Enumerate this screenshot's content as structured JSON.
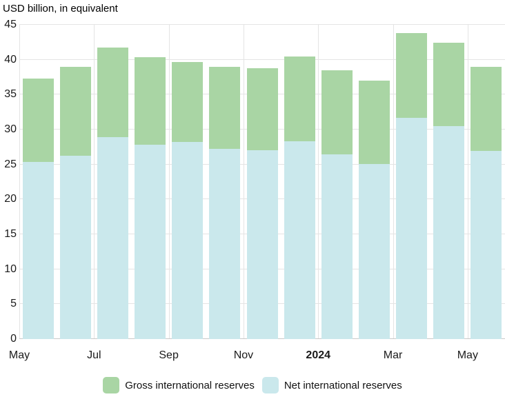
{
  "title": "USD billion, in equivalent",
  "chart_data": {
    "type": "bar",
    "title": "USD billion, in equivalent",
    "xlabel": "",
    "ylabel": "USD billion",
    "ylim": [
      0,
      45
    ],
    "y_ticks": [
      0,
      5,
      10,
      15,
      20,
      25,
      30,
      35,
      40,
      45
    ],
    "n_bars": 13,
    "grid": true,
    "x_ticks": [
      {
        "label": "May",
        "slot": 0,
        "bold": false
      },
      {
        "label": "Jul",
        "slot": 2,
        "bold": false
      },
      {
        "label": "Sep",
        "slot": 4,
        "bold": false
      },
      {
        "label": "Nov",
        "slot": 6,
        "bold": false
      },
      {
        "label": "2024",
        "slot": 8,
        "bold": true
      },
      {
        "label": "Mar",
        "slot": 10,
        "bold": false
      },
      {
        "label": "May",
        "slot": 12,
        "bold": false
      }
    ],
    "series": [
      {
        "name": "Gross international reserves",
        "color": "#a9d5a4",
        "values": [
          37.3,
          39.0,
          41.7,
          40.4,
          39.7,
          39.0,
          38.8,
          40.5,
          38.5,
          37.0,
          43.8,
          42.4,
          39.0
        ]
      },
      {
        "name": "Net international reserves",
        "color": "#cae8ec",
        "values": [
          25.4,
          26.3,
          28.9,
          27.8,
          28.2,
          27.2,
          27.0,
          28.3,
          26.4,
          25.1,
          31.7,
          30.5,
          26.9
        ]
      }
    ],
    "legend_position": "bottom-center",
    "colors": {
      "gridline": "#e4e4e4",
      "zero_axis": "#c9c9c9",
      "text": "#1a1a1a",
      "background": "#ffffff"
    }
  }
}
